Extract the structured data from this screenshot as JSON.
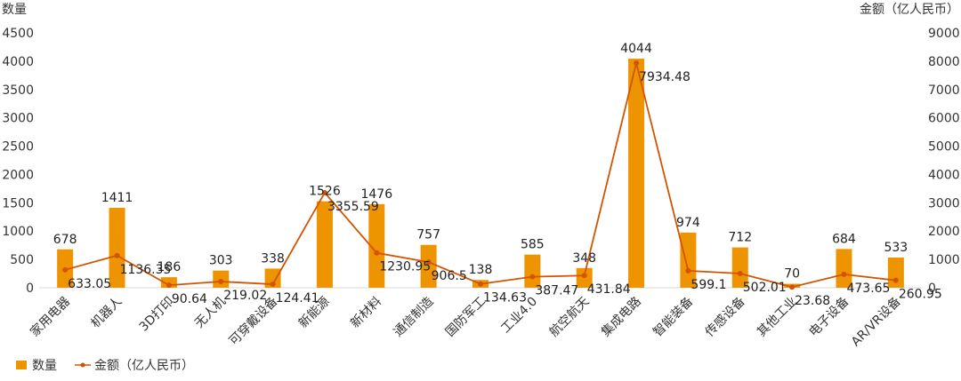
{
  "chart_data": {
    "type": "bar",
    "categories": [
      "家用电器",
      "机器人",
      "3D打印",
      "无人机",
      "可穿戴设备",
      "新能源",
      "新材料",
      "通信制造",
      "国防军工",
      "工业4.0",
      "航空航天",
      "集成电路",
      "智能装备",
      "传感设备",
      "其他工业",
      "电子设备",
      "AR/VR设备"
    ],
    "series": [
      {
        "name": "数量",
        "kind": "bar",
        "axis": "left",
        "color": "#ED9400",
        "values": [
          678,
          1411,
          186,
          303,
          338,
          1526,
          1476,
          757,
          138,
          585,
          348,
          4044,
          974,
          712,
          70,
          684,
          533
        ]
      },
      {
        "name": "金额（亿人民币）",
        "kind": "line",
        "axis": "right",
        "color": "#D35400",
        "values": [
          633.05,
          1136.35,
          90.64,
          219.02,
          124.41,
          3355.59,
          1230.95,
          906.5,
          134.63,
          387.47,
          431.84,
          7934.48,
          599.1,
          502.01,
          23.68,
          473.65,
          260.95
        ]
      }
    ],
    "ylabel": "数量",
    "ylabel_right": "金额（亿人民币）",
    "ylim": [
      0,
      4500
    ],
    "ylim_right": [
      0,
      9000
    ],
    "yticks": [
      0,
      500,
      1000,
      1500,
      2000,
      2500,
      3000,
      3500,
      4000,
      4500
    ],
    "yticks_right": [
      0,
      1000,
      2000,
      3000,
      4000,
      5000,
      6000,
      7000,
      8000,
      9000
    ],
    "grid": false,
    "legend": "bottom-left"
  }
}
